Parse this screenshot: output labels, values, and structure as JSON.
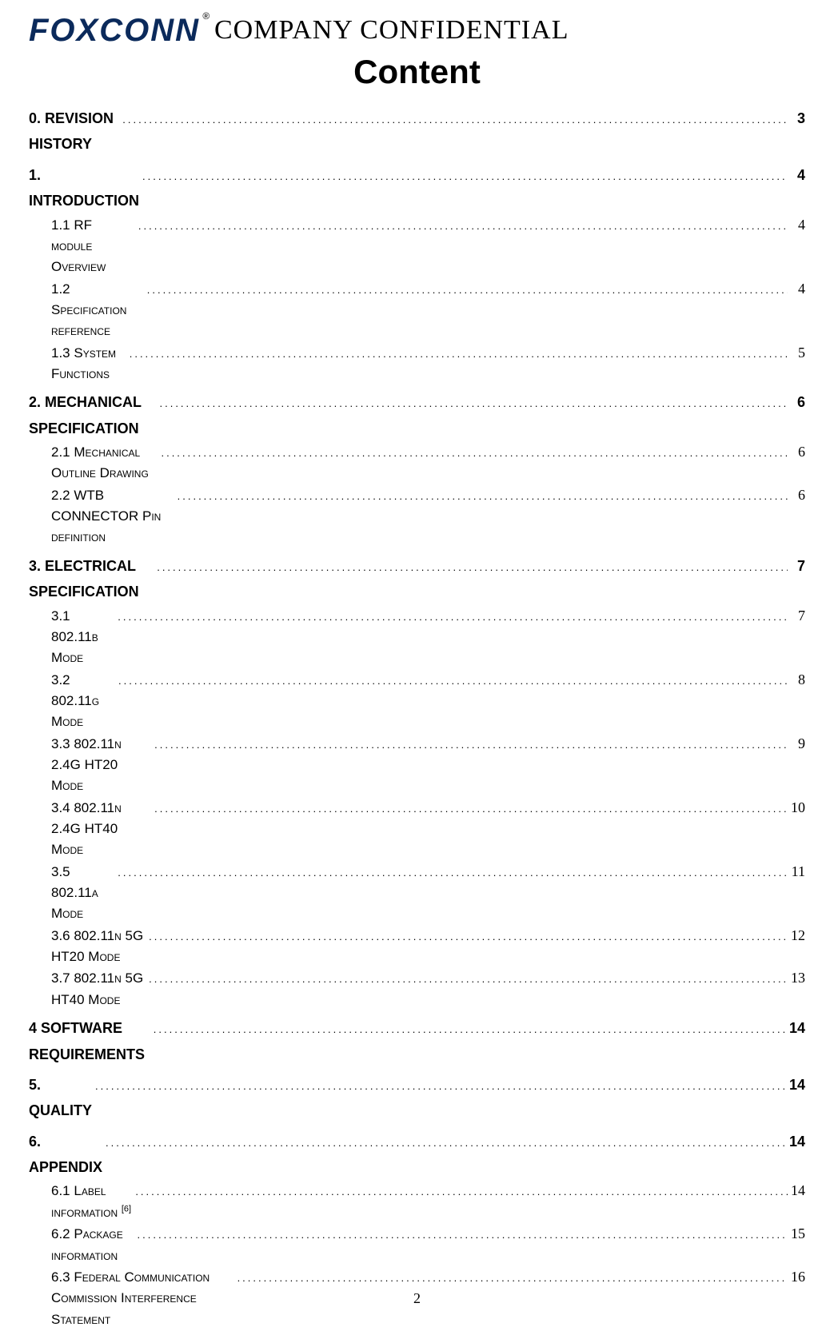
{
  "header": {
    "logo_text": "FOXCONN",
    "registered_mark": "®",
    "confidential": "COMPANY  CONFIDENTIAL",
    "content_heading": "Content"
  },
  "toc": {
    "sections": [
      {
        "level": 1,
        "label": "0. REVISION HISTORY",
        "page": "3"
      },
      {
        "level": 1,
        "label": "1. INTRODUCTION",
        "page": "4"
      },
      {
        "level": 2,
        "label_html": "1.1 RF <span class='sc'>module Overview</span>",
        "page": "4"
      },
      {
        "level": 2,
        "label_html": "1.2 S<span class='sc'>pecification reference</span>",
        "page": "4"
      },
      {
        "level": 2,
        "label_html": "1.3 S<span class='sc'>ystem Functions</span>",
        "page": "5"
      },
      {
        "level": 1,
        "label": "2. MECHANICAL SPECIFICATION",
        "page": "6"
      },
      {
        "level": 2,
        "label_html": "2.1 M<span class='sc'>echanical Outline Drawing</span>",
        "page": "6"
      },
      {
        "level": 2,
        "label_html": "2.2 WTB CONNECTOR P<span class='sc'>in definition</span>",
        "page": "6"
      },
      {
        "level": 1,
        "label": "3. ELECTRICAL SPECIFICATION",
        "page": "7"
      },
      {
        "level": 2,
        "label_html": "3.1 802.11<span class='sc'>b Mode</span>",
        "page": "7"
      },
      {
        "level": 2,
        "label_html": "3.2 802.11<span class='sc'>g Mode</span>",
        "page": "8"
      },
      {
        "level": 2,
        "label_html": "3.3 802.11<span class='sc'>n</span> 2.4G HT20 M<span class='sc'>ode</span>",
        "page": "9"
      },
      {
        "level": 2,
        "label_html": "3.4 802.11<span class='sc'>n</span> 2.4G HT40 M<span class='sc'>ode</span>",
        "page": "10"
      },
      {
        "level": 2,
        "label_html": "3.5 802.11<span class='sc'>a Mode</span>",
        "page": "11"
      },
      {
        "level": 2,
        "label_html": "3.6 802.11<span class='sc'>n</span> 5G HT20 M<span class='sc'>ode</span>",
        "page": "12"
      },
      {
        "level": 2,
        "label_html": "3.7 802.11<span class='sc'>n</span> 5G HT40 M<span class='sc'>ode</span>",
        "page": "13"
      },
      {
        "level": 1,
        "label": "4 SOFTWARE REQUIREMENTS",
        "page": "14"
      },
      {
        "level": 1,
        "label": "5. QUALITY",
        "page": "14"
      },
      {
        "level": 1,
        "label": "6. APPENDIX",
        "page": "14"
      },
      {
        "level": 2,
        "label_html": "6.1 L<span class='sc'>abel information</span> <span class='sup'>[6]</span>",
        "page": "14"
      },
      {
        "level": 2,
        "label_html": "6.2 P<span class='sc'>ackage information</span>",
        "page": "15"
      },
      {
        "level": 2,
        "label_html": "6.3 F<span class='sc'>ederal</span> C<span class='sc'>ommunication</span> C<span class='sc'>ommission</span> I<span class='sc'>nterference</span> S<span class='sc'>tatement</span>",
        "page": "16"
      }
    ]
  },
  "footer": {
    "page_number": "2"
  }
}
